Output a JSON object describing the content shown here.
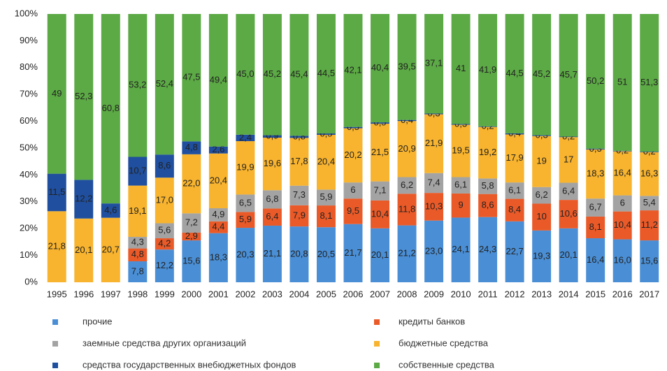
{
  "chart_data": {
    "type": "bar",
    "stacking": "percent",
    "categories": [
      "1995",
      "1996",
      "1997",
      "1998",
      "1999",
      "2000",
      "2001",
      "2002",
      "2003",
      "2004",
      "2005",
      "2006",
      "2007",
      "2008",
      "2009",
      "2010",
      "2011",
      "2012",
      "2013",
      "2014",
      "2015",
      "2016",
      "2017"
    ],
    "ylim": [
      0,
      100
    ],
    "yticks": [
      {
        "value": 0,
        "label": "0%"
      },
      {
        "value": 10,
        "label": "10%"
      },
      {
        "value": 20,
        "label": "20%"
      },
      {
        "value": 30,
        "label": "30%"
      },
      {
        "value": 40,
        "label": "40%"
      },
      {
        "value": 50,
        "label": "50%"
      },
      {
        "value": 60,
        "label": "60%"
      },
      {
        "value": 70,
        "label": "70%"
      },
      {
        "value": 80,
        "label": "80%"
      },
      {
        "value": 90,
        "label": "90%"
      },
      {
        "value": 100,
        "label": "100%"
      }
    ],
    "series": [
      {
        "name": "прочие",
        "color": "#4a8fd6",
        "values": [
          null,
          null,
          null,
          7.8,
          12.2,
          15.6,
          18.3,
          20.3,
          21.1,
          20.8,
          20.5,
          21.7,
          20.1,
          21.2,
          23.0,
          24.1,
          24.3,
          22.7,
          19.3,
          20.1,
          16.4,
          16.0,
          15.6
        ],
        "value_labels": [
          null,
          null,
          null,
          "7,8",
          "12,2",
          "15,6",
          "18,3",
          "20,3",
          "21,1",
          "20,8",
          "20,5",
          "21,7",
          "20,1",
          "21,2",
          "23,0",
          "24,1",
          "24,3",
          "22,7",
          "19,3",
          "20,1",
          "16,4",
          "16,0",
          "15,6"
        ]
      },
      {
        "name": "кредиты банков",
        "color": "#ea5a28",
        "values": [
          null,
          null,
          null,
          4.8,
          4.2,
          2.9,
          4.4,
          5.9,
          6.4,
          7.9,
          8.1,
          9.5,
          10.4,
          11.8,
          10.3,
          9,
          8.6,
          8.4,
          10,
          10.6,
          8.1,
          10.4,
          11.2
        ],
        "value_labels": [
          null,
          null,
          null,
          "4,8",
          "4,2",
          "2,9",
          "4,4",
          "5,9",
          "6,4",
          "7,9",
          "8,1",
          "9,5",
          "10,4",
          "11,8",
          "10,3",
          "9",
          "8,6",
          "8,4",
          "10",
          "10,6",
          "8,1",
          "10,4",
          "11,2"
        ]
      },
      {
        "name": "заемные средства других организаций",
        "color": "#a3a3a3",
        "values": [
          null,
          null,
          null,
          4.3,
          5.6,
          7.2,
          4.9,
          6.5,
          6.8,
          7.3,
          5.9,
          6,
          7.1,
          6.2,
          7.4,
          6.1,
          5.8,
          6.1,
          6.2,
          6.4,
          6.7,
          6,
          5.4
        ],
        "value_labels": [
          null,
          null,
          null,
          "4,3",
          "5,6",
          "7,2",
          "4,9",
          "6,5",
          "6,8",
          "7,3",
          "5,9",
          "6",
          "7,1",
          "6,2",
          "7,4",
          "6,1",
          "5,8",
          "6,1",
          "6,2",
          "6,4",
          "6,7",
          "6",
          "5,4"
        ]
      },
      {
        "name": "бюджетные средства",
        "color": "#f8b42e",
        "values": [
          21.8,
          20.1,
          20.7,
          19.1,
          17.0,
          22.0,
          20.4,
          19.9,
          19.6,
          17.8,
          20.4,
          20.2,
          21.5,
          20.9,
          21.9,
          19.5,
          19.2,
          17.9,
          19,
          17,
          18.3,
          16.4,
          16.3
        ],
        "value_labels": [
          "21,8",
          "20,1",
          "20,7",
          "19,1",
          "17,0",
          "22,0",
          "20,4",
          "19,9",
          "19,6",
          "17,8",
          "20,4",
          "20,2",
          "21,5",
          "20,9",
          "21,9",
          "19,5",
          "19,2",
          "17,9",
          "19",
          "17",
          "18,3",
          "16,4",
          "16,3"
        ]
      },
      {
        "name": "средства государственных внебюджетных фондов",
        "color": "#1f4f9e",
        "values": [
          11.5,
          12.2,
          4.6,
          10.7,
          8.6,
          4.8,
          2.6,
          2.4,
          0.9,
          0.8,
          0.5,
          0.5,
          0.5,
          0.4,
          0.3,
          0.3,
          0.2,
          0.4,
          0.3,
          0.2,
          0.3,
          0.2,
          0.2
        ],
        "value_labels": [
          "11,5",
          "12,2",
          "4,6",
          "10,7",
          "8,6",
          "4,8",
          "2,6",
          "2,4",
          "0,9",
          "0,8",
          "0,5",
          "0,5",
          "0,5",
          "0,4",
          "0,3",
          "0,3",
          "0,2",
          "0,4",
          "0,3",
          "0,2",
          "0,3",
          "0,2",
          "0,2"
        ]
      },
      {
        "name": "собственные средства",
        "color": "#5caa45",
        "values": [
          49,
          52.3,
          60.8,
          53.2,
          52.4,
          47.5,
          49.4,
          45.0,
          45.2,
          45.4,
          44.5,
          42.1,
          40.4,
          39.5,
          37.1,
          41,
          41.9,
          44.5,
          45.2,
          45.7,
          50.2,
          51,
          51.3
        ],
        "value_labels": [
          "49",
          "52,3",
          "60,8",
          "53,2",
          "52,4",
          "47,5",
          "49,4",
          "45,0",
          "45,2",
          "45,4",
          "44,5",
          "42,1",
          "40,4",
          "39,5",
          "37,1",
          "41",
          "41,9",
          "44,5",
          "45,2",
          "45,7",
          "50,2",
          "51",
          "51,3"
        ]
      }
    ]
  }
}
